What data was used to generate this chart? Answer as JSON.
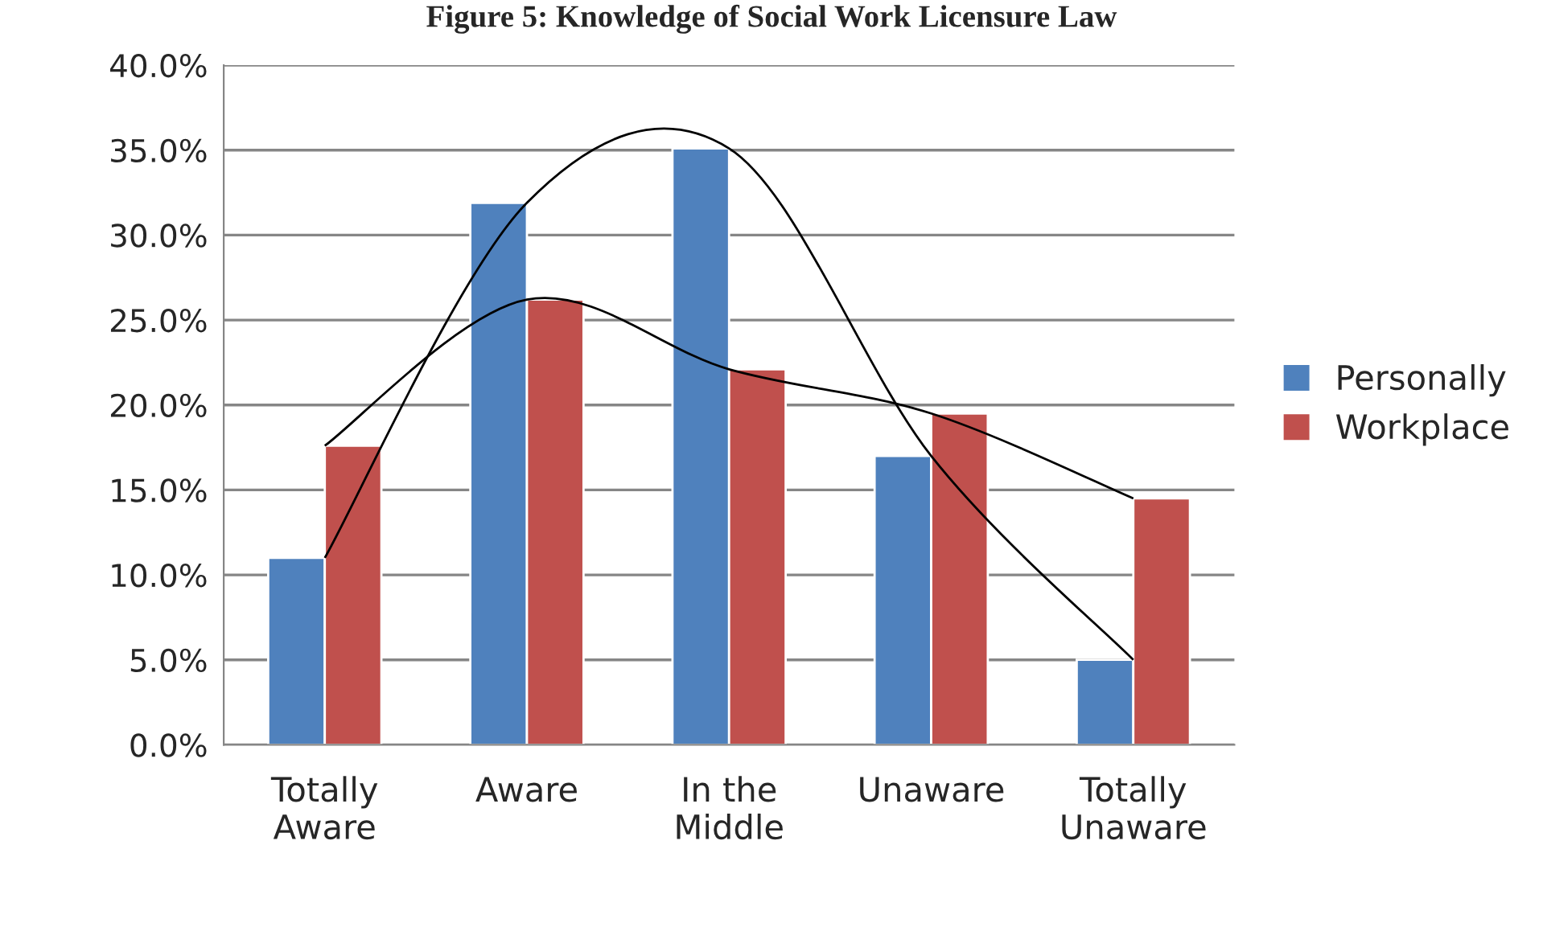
{
  "chart_data": {
    "type": "bar",
    "title": "Figure 5: Knowledge of Social Work Licensure Law",
    "categories": [
      "Totally\nAware",
      "Aware",
      "In the\nMiddle",
      "Unaware",
      "Totally\nUnaware"
    ],
    "series": [
      {
        "name": "Personally",
        "color": "#4f81bd",
        "values": [
          11.0,
          31.9,
          35.1,
          17.0,
          5.0
        ]
      },
      {
        "name": "Workplace",
        "color": "#c0504d",
        "values": [
          17.6,
          26.2,
          22.1,
          19.5,
          14.5
        ]
      },
      {
        "type": "line",
        "color": "#000000",
        "values": [
          11.0,
          31.9,
          35.1,
          17.0,
          5.0
        ]
      },
      {
        "type": "line",
        "color": "#000000",
        "values": [
          17.6,
          26.2,
          22.1,
          19.5,
          14.5
        ]
      }
    ],
    "ylim": [
      0,
      40
    ],
    "yticks": [
      {
        "value": 0,
        "label": "0.0%"
      },
      {
        "value": 5,
        "label": "5.0%"
      },
      {
        "value": 10,
        "label": "10.0%"
      },
      {
        "value": 15,
        "label": "15.0%"
      },
      {
        "value": 20,
        "label": "20.0%"
      },
      {
        "value": 25,
        "label": "25.0%"
      },
      {
        "value": 30,
        "label": "30.0%"
      },
      {
        "value": 35,
        "label": "35.0%"
      },
      {
        "value": 40,
        "label": "40.0%"
      }
    ],
    "grid": "y",
    "legend": "right",
    "marker": "none",
    "line_style": "solid"
  }
}
